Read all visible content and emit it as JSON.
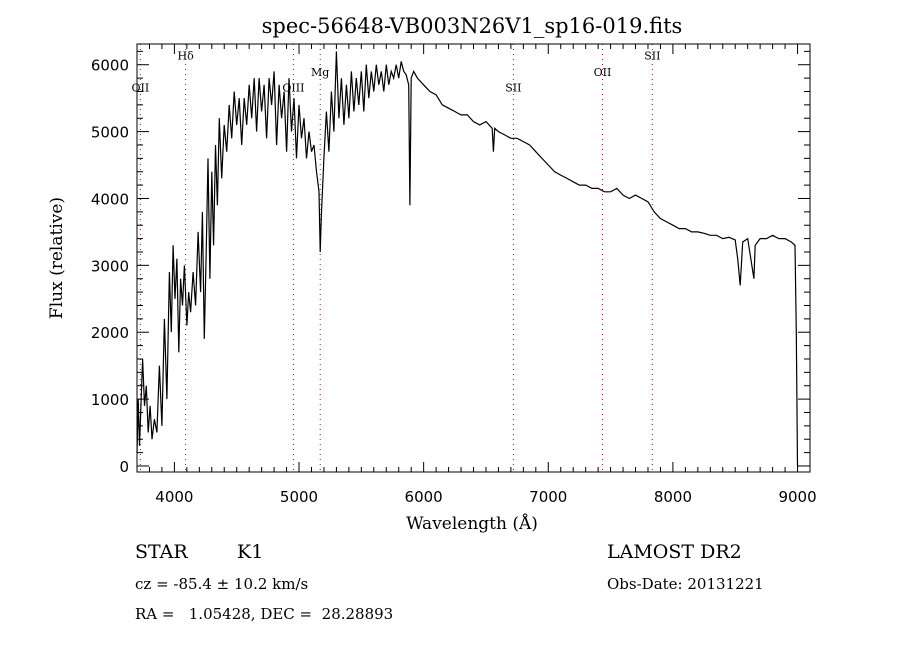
{
  "chart_data": {
    "type": "line",
    "title": "spec-56648-VB003N26V1_sp16-019.fits",
    "xlabel": "Wavelength (Å)",
    "ylabel": "Flux (relative)",
    "xlim": [
      3700,
      9100
    ],
    "ylim": [
      -90,
      6310
    ],
    "xticks": [
      4000,
      5000,
      6000,
      7000,
      8000,
      9000
    ],
    "yticks": [
      0,
      1000,
      2000,
      3000,
      4000,
      5000,
      6000
    ],
    "grid": false,
    "line_color": "#000000",
    "marker_color": "#8b1a1a",
    "lines": [
      {
        "label": "OII",
        "x": 3727,
        "label_y": 5600
      },
      {
        "label": "Hδ",
        "x": 4090,
        "label_y": 6080
      },
      {
        "label": "OIII",
        "x": 4955,
        "label_y": 5600
      },
      {
        "label": "Mg",
        "x": 5170,
        "label_y": 5830
      },
      {
        "label": "SII",
        "x": 6720,
        "label_y": 5600
      },
      {
        "label": "OII",
        "x": 7435,
        "label_y": 5830
      },
      {
        "label": "SII",
        "x": 7835,
        "label_y": 6080
      }
    ],
    "spectrum": {
      "x": [
        3700,
        3710,
        3720,
        3730,
        3745,
        3760,
        3775,
        3790,
        3805,
        3820,
        3840,
        3860,
        3880,
        3900,
        3920,
        3940,
        3960,
        3975,
        3990,
        4005,
        4020,
        4035,
        4050,
        4065,
        4080,
        4100,
        4115,
        4130,
        4150,
        4170,
        4190,
        4210,
        4225,
        4240,
        4255,
        4270,
        4285,
        4300,
        4315,
        4330,
        4345,
        4360,
        4380,
        4400,
        4420,
        4440,
        4460,
        4480,
        4500,
        4520,
        4540,
        4560,
        4580,
        4600,
        4620,
        4640,
        4660,
        4680,
        4700,
        4720,
        4740,
        4760,
        4780,
        4800,
        4820,
        4840,
        4860,
        4880,
        4900,
        4920,
        4940,
        4960,
        4980,
        5000,
        5020,
        5040,
        5060,
        5080,
        5100,
        5120,
        5140,
        5160,
        5170,
        5180,
        5200,
        5220,
        5240,
        5260,
        5280,
        5300,
        5320,
        5340,
        5360,
        5380,
        5400,
        5420,
        5440,
        5460,
        5480,
        5500,
        5520,
        5540,
        5560,
        5580,
        5600,
        5620,
        5640,
        5660,
        5680,
        5700,
        5720,
        5740,
        5760,
        5780,
        5800,
        5820,
        5840,
        5860,
        5880,
        5890,
        5900,
        5920,
        5950,
        6000,
        6050,
        6100,
        6150,
        6200,
        6250,
        6300,
        6350,
        6400,
        6450,
        6500,
        6550,
        6560,
        6570,
        6600,
        6650,
        6700,
        6750,
        6800,
        6850,
        6900,
        6950,
        7000,
        7050,
        7100,
        7150,
        7200,
        7250,
        7300,
        7350,
        7400,
        7450,
        7500,
        7550,
        7600,
        7650,
        7700,
        7750,
        7800,
        7850,
        7900,
        7950,
        8000,
        8050,
        8100,
        8150,
        8200,
        8250,
        8300,
        8350,
        8400,
        8450,
        8500,
        8520,
        8540,
        8560,
        8600,
        8650,
        8660,
        8700,
        8750,
        8800,
        8850,
        8900,
        8950,
        8980,
        8990,
        9000
      ],
      "y": [
        200,
        1000,
        300,
        800,
        1600,
        900,
        1200,
        500,
        900,
        400,
        700,
        500,
        1500,
        600,
        2200,
        1000,
        2900,
        2000,
        3300,
        2500,
        3100,
        1700,
        2800,
        2400,
        3000,
        2100,
        2600,
        2300,
        2900,
        2400,
        3500,
        2600,
        3800,
        1900,
        3200,
        4600,
        2800,
        4400,
        3300,
        4800,
        3900,
        5200,
        4300,
        5100,
        4700,
        5400,
        4900,
        5600,
        5100,
        5500,
        4800,
        5500,
        5100,
        5700,
        5200,
        5800,
        5000,
        5800,
        5300,
        5700,
        4900,
        5800,
        5400,
        5900,
        4800,
        5700,
        5200,
        5600,
        4700,
        5800,
        5000,
        5500,
        4600,
        5400,
        4900,
        5200,
        4600,
        5000,
        4700,
        4800,
        4400,
        4100,
        3200,
        3800,
        4600,
        5300,
        4700,
        5600,
        5000,
        6200,
        5200,
        5800,
        5100,
        5700,
        5200,
        5900,
        5300,
        5800,
        5400,
        5900,
        5300,
        6000,
        5500,
        5900,
        5600,
        6000,
        5700,
        5900,
        5600,
        6000,
        5700,
        5900,
        5800,
        6000,
        5800,
        6050,
        5900,
        5850,
        5700,
        3900,
        5800,
        5900,
        5800,
        5700,
        5600,
        5550,
        5400,
        5350,
        5300,
        5250,
        5250,
        5150,
        5100,
        5150,
        5050,
        4700,
        5050,
        5000,
        4950,
        4900,
        4900,
        4850,
        4800,
        4700,
        4600,
        4500,
        4400,
        4350,
        4300,
        4250,
        4200,
        4200,
        4150,
        4150,
        4100,
        4100,
        4150,
        4050,
        4000,
        4050,
        4000,
        3950,
        3800,
        3700,
        3650,
        3600,
        3550,
        3550,
        3500,
        3500,
        3480,
        3450,
        3450,
        3400,
        3420,
        3380,
        3100,
        2700,
        3350,
        3400,
        2800,
        3300,
        3400,
        3400,
        3450,
        3400,
        3400,
        3350,
        3300,
        2000,
        0
      ]
    }
  },
  "footer": {
    "object_type": "STAR",
    "subclass": "K1",
    "survey": "LAMOST DR2",
    "cz": "cz = -85.4 ± 10.2 km/s",
    "obs_date": "Obs-Date: 20131221",
    "coords": "RA =   1.05428, DEC =  28.28893"
  }
}
